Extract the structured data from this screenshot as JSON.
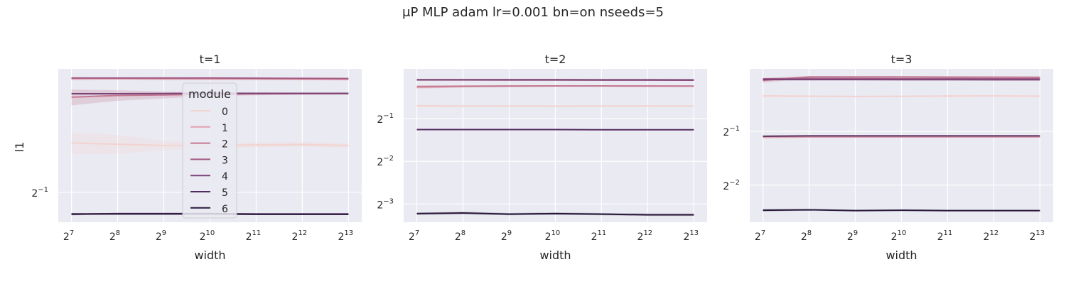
{
  "figure": {
    "suptitle": "μP MLP adam lr=0.001 bn=on nseeds=5"
  },
  "legend": {
    "title": "module",
    "placement": "upper-center of first panel",
    "entries": [
      "0",
      "1",
      "2",
      "3",
      "4",
      "5",
      "6"
    ],
    "colors": [
      "#f2d3cf",
      "#e0a2ae",
      "#c47992",
      "#a15a84",
      "#7b4277",
      "#542c60",
      "#2a1a3c"
    ]
  },
  "chart_data": [
    {
      "type": "line",
      "title": "t=1",
      "xlabel": "width",
      "ylabel": "l1",
      "x_scale": "log2",
      "y_scale": "log2",
      "x": [
        128,
        256,
        512,
        1024,
        2048,
        4096,
        8192
      ],
      "xlim": [
        105,
        10000
      ],
      "ylim": [
        0.415,
        1.08
      ],
      "x_ticks": [
        {
          "base": "2",
          "exp": "7",
          "value": 128
        },
        {
          "base": "2",
          "exp": "8",
          "value": 256
        },
        {
          "base": "2",
          "exp": "9",
          "value": 512
        },
        {
          "base": "2",
          "exp": "10",
          "value": 1024
        },
        {
          "base": "2",
          "exp": "11",
          "value": 2048
        },
        {
          "base": "2",
          "exp": "12",
          "value": 4096
        },
        {
          "base": "2",
          "exp": "13",
          "value": 8192
        }
      ],
      "y_ticks": [
        {
          "base": "2",
          "exp": "−1",
          "value": 0.5
        }
      ],
      "grid": true,
      "series": [
        {
          "name": "0",
          "values": [
            0.68,
            0.675,
            0.67,
            0.67,
            0.672,
            0.674,
            0.67
          ],
          "band": [
            0.045,
            0.04,
            0.02,
            0.01,
            0.01,
            0.01,
            0.01
          ]
        },
        {
          "name": "1",
          "values": [
            1.015,
            1.015,
            1.013,
            1.012,
            1.012,
            1.011,
            1.01
          ],
          "band": [
            0.01,
            0.008,
            0.005,
            0.004,
            0.003,
            0.003,
            0.003
          ]
        },
        {
          "name": "2",
          "values": [
            0.905,
            0.915,
            0.918,
            0.922,
            0.924,
            0.925,
            0.925
          ],
          "band": [
            0.045,
            0.03,
            0.02,
            0.012,
            0.008,
            0.006,
            0.005
          ]
        },
        {
          "name": "3",
          "values": [
            1.02,
            1.02,
            1.02,
            1.02,
            1.019,
            1.018,
            1.017
          ],
          "band": [
            0.004,
            0.003,
            0.003,
            0.002,
            0.002,
            0.002,
            0.002
          ]
        },
        {
          "name": "4",
          "values": [
            0.925,
            0.925,
            0.926,
            0.927,
            0.927,
            0.927,
            0.927
          ],
          "band": [
            0.005,
            0.004,
            0.003,
            0.003,
            0.002,
            0.002,
            0.002
          ]
        },
        {
          "name": "5",
          "values": [
            0.436,
            0.438,
            0.438,
            0.438,
            0.437,
            0.437,
            0.437
          ],
          "band": [
            0.003,
            0.002,
            0.002,
            0.002,
            0.002,
            0.002,
            0.002
          ]
        },
        {
          "name": "6",
          "values": [
            0.437,
            0.437,
            0.437,
            0.437,
            0.436,
            0.436,
            0.436
          ],
          "band": [
            0.002,
            0.002,
            0.002,
            0.002,
            0.002,
            0.002,
            0.002
          ]
        }
      ]
    },
    {
      "type": "line",
      "title": "t=2",
      "xlabel": "width",
      "ylabel": "",
      "x_scale": "log2",
      "y_scale": "log2",
      "x": [
        128,
        256,
        512,
        1024,
        2048,
        4096,
        8192
      ],
      "xlim": [
        105,
        10000
      ],
      "ylim": [
        0.093,
        1.12
      ],
      "x_ticks": [
        {
          "base": "2",
          "exp": "7",
          "value": 128
        },
        {
          "base": "2",
          "exp": "8",
          "value": 256
        },
        {
          "base": "2",
          "exp": "9",
          "value": 512
        },
        {
          "base": "2",
          "exp": "10",
          "value": 1024
        },
        {
          "base": "2",
          "exp": "11",
          "value": 2048
        },
        {
          "base": "2",
          "exp": "12",
          "value": 4096
        },
        {
          "base": "2",
          "exp": "13",
          "value": 8192
        }
      ],
      "y_ticks": [
        {
          "base": "2",
          "exp": "−1",
          "value": 0.5
        },
        {
          "base": "2",
          "exp": "−2",
          "value": 0.25
        },
        {
          "base": "2",
          "exp": "−3",
          "value": 0.125
        }
      ],
      "grid": true,
      "series": [
        {
          "name": "0",
          "values": [
            0.615,
            0.613,
            0.612,
            0.611,
            0.613,
            0.614,
            0.612
          ],
          "band": [
            0.01,
            0.008,
            0.006,
            0.005,
            0.005,
            0.005,
            0.005
          ]
        },
        {
          "name": "1",
          "values": [
            0.83,
            0.84,
            0.845,
            0.848,
            0.848,
            0.847,
            0.846
          ],
          "band": [
            0.02,
            0.012,
            0.008,
            0.006,
            0.005,
            0.005,
            0.005
          ]
        },
        {
          "name": "2",
          "values": [
            0.842,
            0.846,
            0.848,
            0.85,
            0.849,
            0.848,
            0.847
          ],
          "band": [
            0.01,
            0.008,
            0.006,
            0.005,
            0.005,
            0.005,
            0.005
          ]
        },
        {
          "name": "3",
          "values": [
            0.935,
            0.935,
            0.934,
            0.934,
            0.933,
            0.933,
            0.932
          ],
          "band": [
            0.004,
            0.003,
            0.003,
            0.003,
            0.003,
            0.003,
            0.003
          ]
        },
        {
          "name": "4",
          "values": [
            0.94,
            0.94,
            0.939,
            0.939,
            0.938,
            0.938,
            0.937
          ],
          "band": [
            0.003,
            0.003,
            0.003,
            0.003,
            0.003,
            0.003,
            0.003
          ]
        },
        {
          "name": "5",
          "values": [
            0.418,
            0.418,
            0.418,
            0.418,
            0.417,
            0.417,
            0.417
          ],
          "band": [
            0.003,
            0.002,
            0.002,
            0.002,
            0.002,
            0.002,
            0.002
          ]
        },
        {
          "name": "6",
          "values": [
            0.107,
            0.108,
            0.106,
            0.107,
            0.106,
            0.105,
            0.105
          ],
          "band": [
            0.002,
            0.002,
            0.002,
            0.002,
            0.002,
            0.002,
            0.002
          ]
        }
      ]
    },
    {
      "type": "line",
      "title": "t=3",
      "xlabel": "width",
      "ylabel": "",
      "x_scale": "log2",
      "y_scale": "log2",
      "x": [
        128,
        256,
        512,
        1024,
        2048,
        4096,
        8192
      ],
      "xlim": [
        105,
        10000
      ],
      "ylim": [
        0.155,
        1.12
      ],
      "x_ticks": [
        {
          "base": "2",
          "exp": "7",
          "value": 128
        },
        {
          "base": "2",
          "exp": "8",
          "value": 256
        },
        {
          "base": "2",
          "exp": "9",
          "value": 512
        },
        {
          "base": "2",
          "exp": "10",
          "value": 1024
        },
        {
          "base": "2",
          "exp": "11",
          "value": 2048
        },
        {
          "base": "2",
          "exp": "12",
          "value": 4096
        },
        {
          "base": "2",
          "exp": "13",
          "value": 8192
        }
      ],
      "y_ticks": [
        {
          "base": "2",
          "exp": "−1",
          "value": 0.5
        },
        {
          "base": "2",
          "exp": "−2",
          "value": 0.25
        }
      ],
      "grid": true,
      "series": [
        {
          "name": "0",
          "values": [
            0.79,
            0.787,
            0.785,
            0.786,
            0.789,
            0.79,
            0.788
          ],
          "band": [
            0.01,
            0.008,
            0.006,
            0.005,
            0.005,
            0.005,
            0.005
          ]
        },
        {
          "name": "1",
          "values": [
            0.463,
            0.465,
            0.465,
            0.465,
            0.465,
            0.465,
            0.465
          ],
          "band": [
            0.004,
            0.003,
            0.003,
            0.003,
            0.003,
            0.003,
            0.003
          ]
        },
        {
          "name": "2",
          "values": [
            0.965,
            1.01,
            1.01,
            1.01,
            1.008,
            1.007,
            1.006
          ],
          "band": [
            0.03,
            0.01,
            0.006,
            0.005,
            0.005,
            0.005,
            0.005
          ]
        },
        {
          "name": "3",
          "values": [
            0.985,
            0.99,
            0.99,
            0.989,
            0.989,
            0.988,
            0.988
          ],
          "band": [
            0.004,
            0.003,
            0.003,
            0.003,
            0.003,
            0.003,
            0.003
          ]
        },
        {
          "name": "4",
          "values": [
            0.975,
            0.975,
            0.975,
            0.974,
            0.974,
            0.973,
            0.973
          ],
          "band": [
            0.003,
            0.003,
            0.003,
            0.003,
            0.003,
            0.003,
            0.003
          ]
        },
        {
          "name": "5",
          "values": [
            0.47,
            0.472,
            0.472,
            0.472,
            0.472,
            0.472,
            0.472
          ],
          "band": [
            0.003,
            0.002,
            0.002,
            0.002,
            0.002,
            0.002,
            0.002
          ]
        },
        {
          "name": "6",
          "values": [
            0.181,
            0.182,
            0.18,
            0.181,
            0.18,
            0.18,
            0.18
          ],
          "band": [
            0.003,
            0.002,
            0.002,
            0.002,
            0.002,
            0.002,
            0.002
          ]
        }
      ]
    }
  ]
}
